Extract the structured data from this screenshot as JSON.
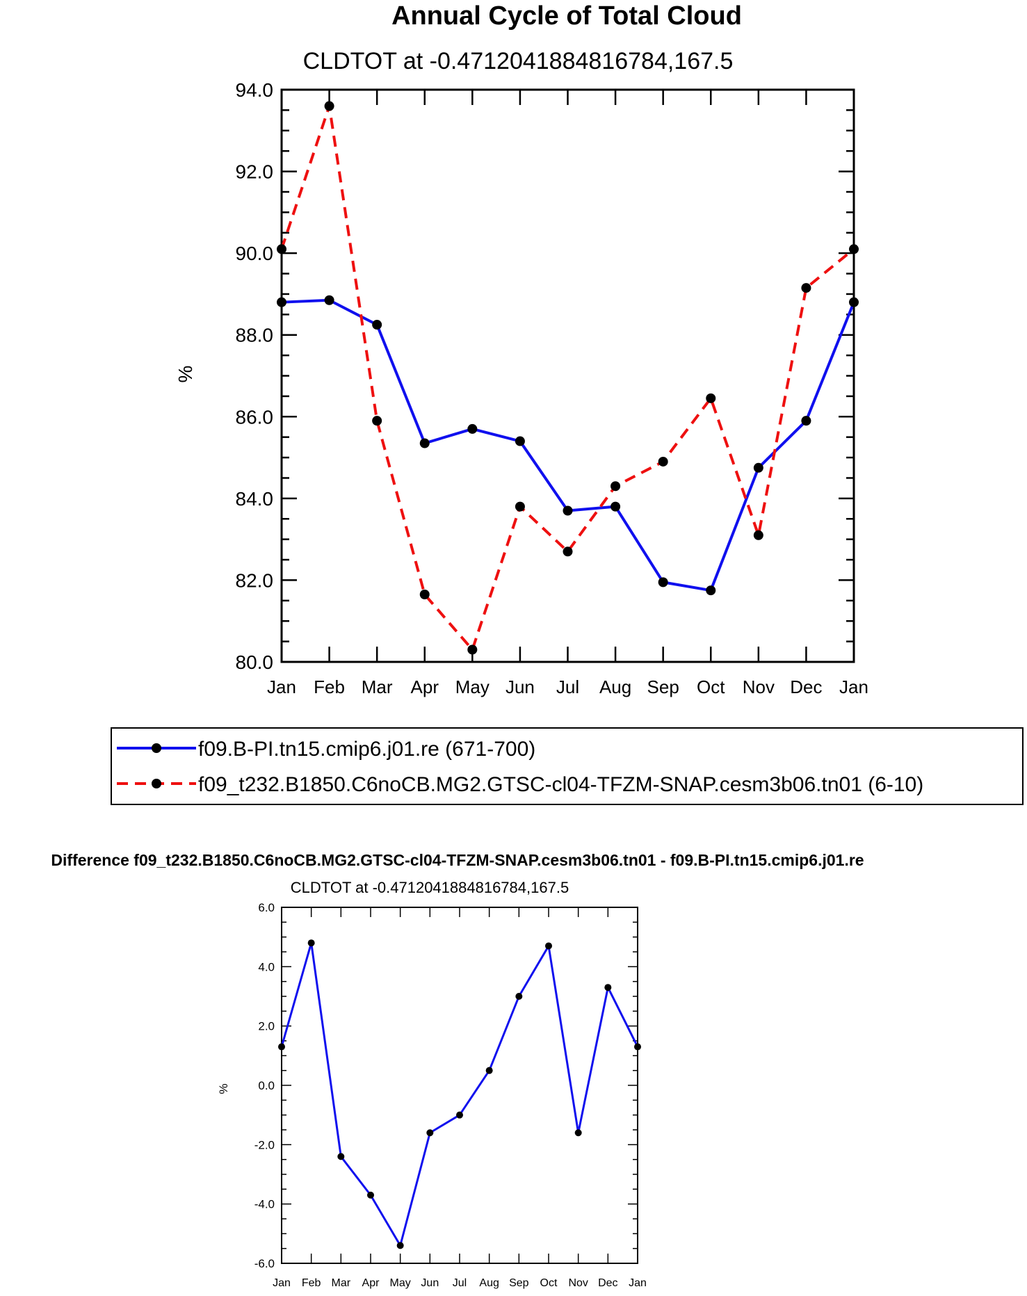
{
  "chart_data": [
    {
      "type": "line",
      "title": "Annual Cycle of Total Cloud",
      "subtitle": "CLDTOT at -0.4712041884816784,167.5",
      "ylabel": "%",
      "xlabel": "",
      "ylim": [
        80.0,
        94.0
      ],
      "y_ticks": [
        "80.0",
        "82.0",
        "84.0",
        "86.0",
        "88.0",
        "90.0",
        "92.0",
        "94.0"
      ],
      "categories": [
        "Jan",
        "Feb",
        "Mar",
        "Apr",
        "May",
        "Jun",
        "Jul",
        "Aug",
        "Sep",
        "Oct",
        "Nov",
        "Dec",
        "Jan"
      ],
      "series": [
        {
          "name": "f09.B-PI.tn15.cmip6.j01.re (671-700)",
          "color": "#1010ee",
          "style": "solid",
          "values": [
            88.8,
            88.85,
            88.25,
            85.35,
            85.7,
            85.4,
            83.7,
            83.8,
            81.95,
            81.75,
            84.75,
            85.9,
            88.8
          ]
        },
        {
          "name": "f09_t232.B1850.C6noCB.MG2.GTSC-cl04-TFZM-SNAP.cesm3b06.tn01 (6-10)",
          "color": "#ee1010",
          "style": "dashed",
          "values": [
            90.1,
            93.6,
            85.9,
            81.65,
            80.3,
            83.8,
            82.7,
            84.3,
            84.9,
            86.45,
            83.1,
            89.15,
            90.1
          ]
        }
      ],
      "legend": "below"
    },
    {
      "type": "line",
      "title": "Difference f09_t232.B1850.C6noCB.MG2.GTSC-cl04-TFZM-SNAP.cesm3b06.tn01 - f09.B-PI.tn15.cmip6.j01.re",
      "subtitle": "CLDTOT at -0.4712041884816784,167.5",
      "ylabel": "%",
      "xlabel": "",
      "ylim": [
        -6.0,
        6.0
      ],
      "y_ticks": [
        "-6.0",
        "-4.0",
        "-2.0",
        "0.0",
        "2.0",
        "4.0",
        "6.0"
      ],
      "categories": [
        "Jan",
        "Feb",
        "Mar",
        "Apr",
        "May",
        "Jun",
        "Jul",
        "Aug",
        "Sep",
        "Oct",
        "Nov",
        "Dec",
        "Jan"
      ],
      "series": [
        {
          "name": "Difference",
          "color": "#1010ee",
          "style": "solid",
          "values": [
            1.3,
            4.8,
            -2.4,
            -3.7,
            -5.4,
            -1.6,
            -1.0,
            0.5,
            3.0,
            4.7,
            -1.6,
            3.3,
            1.3
          ]
        }
      ]
    }
  ]
}
